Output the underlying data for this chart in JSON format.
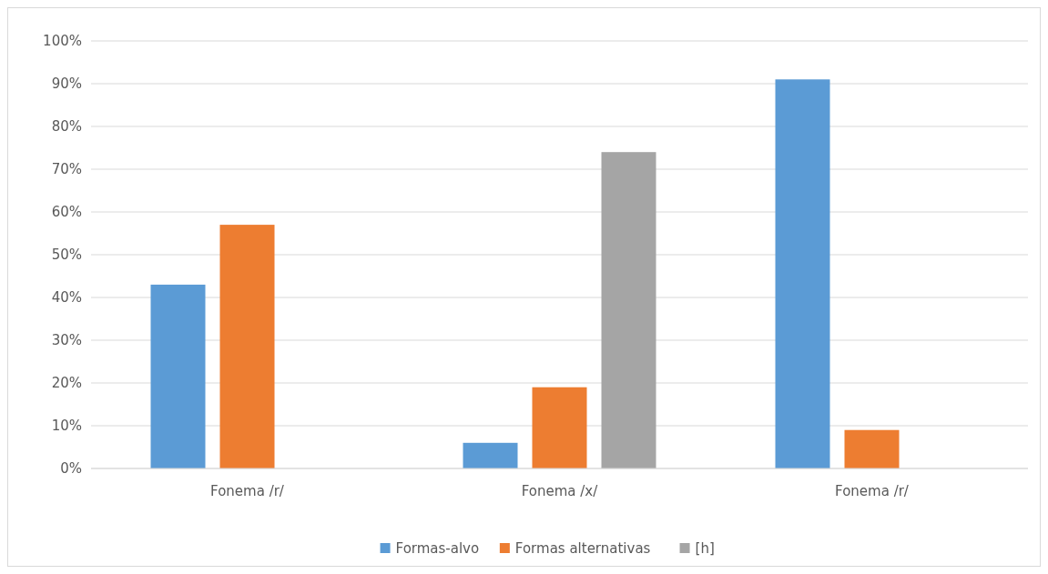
{
  "chart_data": {
    "type": "bar",
    "categories": [
      "Fonema /r/",
      "Fonema /x/",
      "Fonema /r/"
    ],
    "series": [
      {
        "name": "Formas-alvo",
        "color": "#5b9bd5",
        "values": [
          43,
          6,
          91
        ]
      },
      {
        "name": "Formas alternativas",
        "color": "#ed7d31",
        "values": [
          57,
          19,
          9
        ]
      },
      {
        "name": "[h]",
        "color": "#a5a5a5",
        "values": [
          null,
          74,
          null
        ]
      }
    ],
    "ylim": [
      0,
      100
    ],
    "yticks": [
      {
        "value": 0,
        "label": "0%"
      },
      {
        "value": 10,
        "label": "10%"
      },
      {
        "value": 20,
        "label": "20%"
      },
      {
        "value": 30,
        "label": "30%"
      },
      {
        "value": 40,
        "label": "40%"
      },
      {
        "value": 50,
        "label": "50%"
      },
      {
        "value": 60,
        "label": "60%"
      },
      {
        "value": 70,
        "label": "70%"
      },
      {
        "value": 80,
        "label": "80%"
      },
      {
        "value": 90,
        "label": "90%"
      },
      {
        "value": 100,
        "label": "100%"
      }
    ],
    "grid": "y",
    "legend": "bottom"
  }
}
